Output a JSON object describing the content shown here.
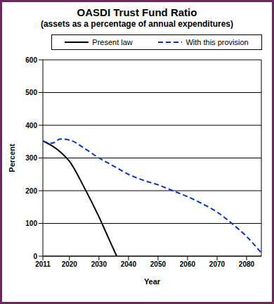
{
  "chart_data": {
    "type": "line",
    "title": "OASDI Trust Fund Ratio",
    "subtitle": "(assets as a percentage of annual expenditures)",
    "x_label": "Year",
    "y_label": "Percent",
    "x": [
      2011,
      2014,
      2017,
      2020,
      2025,
      2030,
      2033,
      2036,
      2040,
      2045,
      2050,
      2055,
      2060,
      2065,
      2070,
      2075,
      2080,
      2085
    ],
    "series": [
      {
        "name": "Present law",
        "color": "#000000",
        "line_style": "solid",
        "values": [
          352,
          338,
          318,
          290,
          210,
          120,
          60,
          0,
          null,
          null,
          null,
          null,
          null,
          null,
          null,
          null,
          null,
          null
        ]
      },
      {
        "name": "With this provision",
        "color": "#0033cc",
        "line_style": "dashed",
        "values": [
          352,
          345,
          358,
          355,
          330,
          300,
          285,
          270,
          250,
          232,
          218,
          200,
          182,
          160,
          135,
          100,
          60,
          10
        ]
      }
    ],
    "xlim": [
      2011,
      2085
    ],
    "xticks": [
      2011,
      2020,
      2030,
      2040,
      2050,
      2060,
      2070,
      2080
    ],
    "ylim": [
      0,
      600
    ],
    "yticks": [
      0,
      100,
      200,
      300,
      400,
      500,
      600
    ],
    "grid": true,
    "legend": "top"
  }
}
